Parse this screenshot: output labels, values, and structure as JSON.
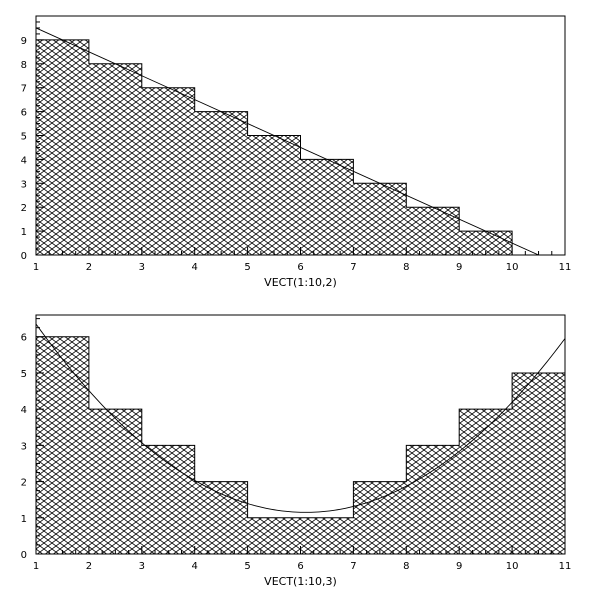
{
  "chart_data": [
    {
      "type": "bar",
      "style": "histogram",
      "fill": "cross-hatch",
      "bin_edges": [
        1,
        2,
        3,
        4,
        5,
        6,
        7,
        8,
        9,
        10
      ],
      "values": [
        9,
        8,
        7,
        6,
        5,
        4,
        3,
        2,
        1
      ],
      "fit_line": {
        "type": "linear",
        "x": [
          1,
          10.5
        ],
        "y": [
          9.5,
          0
        ]
      },
      "xlabel": "VECT(1:10,2)",
      "ylabel": "",
      "xlim": [
        1,
        11
      ],
      "ylim": [
        0,
        10
      ],
      "xticks": [
        "1",
        "2",
        "3",
        "4",
        "5",
        "6",
        "7",
        "8",
        "9",
        "10",
        "11"
      ],
      "yticks": [
        "0",
        "1",
        "2",
        "3",
        "4",
        "5",
        "6",
        "7",
        "8",
        "9"
      ],
      "grid": false
    },
    {
      "type": "bar",
      "style": "histogram",
      "fill": "cross-hatch",
      "bin_edges": [
        1,
        2,
        3,
        4,
        5,
        7,
        8,
        9,
        10,
        11
      ],
      "values": [
        6,
        4,
        3,
        2,
        1,
        2,
        3,
        4,
        5
      ],
      "fit_line": {
        "type": "parabola",
        "vertex": [
          6.1,
          1.15
        ],
        "coef": 0.2
      },
      "xlabel": "VECT(1:10,3)",
      "ylabel": "",
      "xlim": [
        1,
        11
      ],
      "ylim": [
        0,
        6.6
      ],
      "xticks": [
        "1",
        "2",
        "3",
        "4",
        "5",
        "6",
        "7",
        "8",
        "9",
        "10",
        "11"
      ],
      "yticks": [
        "0",
        "1",
        "2",
        "3",
        "4",
        "5",
        "6"
      ],
      "grid": false
    }
  ]
}
